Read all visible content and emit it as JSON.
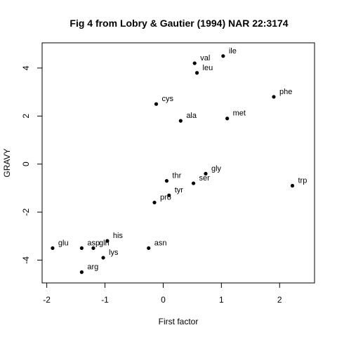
{
  "chart_data": {
    "type": "scatter",
    "title": "Fig 4 from Lobry & Gautier (1994) NAR 22:3174",
    "xlabel": "First factor",
    "ylabel": "GRAVY",
    "xlim": [
      -2.08,
      2.6
    ],
    "ylim": [
      -4.95,
      5.05
    ],
    "xticks": [
      -2,
      -1,
      0,
      1,
      2
    ],
    "xtick_labels": [
      "-2",
      "-1",
      "0",
      "1",
      "2"
    ],
    "yticks": [
      -4,
      -2,
      0,
      2,
      4
    ],
    "ytick_labels": [
      "-4",
      "-2",
      "0",
      "2",
      "4"
    ],
    "grid": false,
    "points": [
      {
        "label": "ile",
        "x": 1.03,
        "y": 4.5
      },
      {
        "label": "val",
        "x": 0.54,
        "y": 4.2
      },
      {
        "label": "leu",
        "x": 0.58,
        "y": 3.8
      },
      {
        "label": "phe",
        "x": 1.9,
        "y": 2.8
      },
      {
        "label": "cys",
        "x": -0.12,
        "y": 2.5
      },
      {
        "label": "met",
        "x": 1.1,
        "y": 1.9
      },
      {
        "label": "ala",
        "x": 0.3,
        "y": 1.8
      },
      {
        "label": "gly",
        "x": 0.73,
        "y": -0.4
      },
      {
        "label": "thr",
        "x": 0.06,
        "y": -0.7
      },
      {
        "label": "ser",
        "x": 0.52,
        "y": -0.8
      },
      {
        "label": "trp",
        "x": 2.22,
        "y": -0.9
      },
      {
        "label": "tyr",
        "x": 0.1,
        "y": -1.3
      },
      {
        "label": "pro",
        "x": -0.15,
        "y": -1.6
      },
      {
        "label": "his",
        "x": -0.96,
        "y": -3.2
      },
      {
        "label": "asn",
        "x": -0.25,
        "y": -3.5
      },
      {
        "label": "glu",
        "x": -1.9,
        "y": -3.5
      },
      {
        "label": "asp",
        "x": -1.4,
        "y": -3.5
      },
      {
        "label": "gln",
        "x": -1.2,
        "y": -3.5
      },
      {
        "label": "lys",
        "x": -1.03,
        "y": -3.9
      },
      {
        "label": "arg",
        "x": -1.4,
        "y": -4.5
      }
    ]
  }
}
